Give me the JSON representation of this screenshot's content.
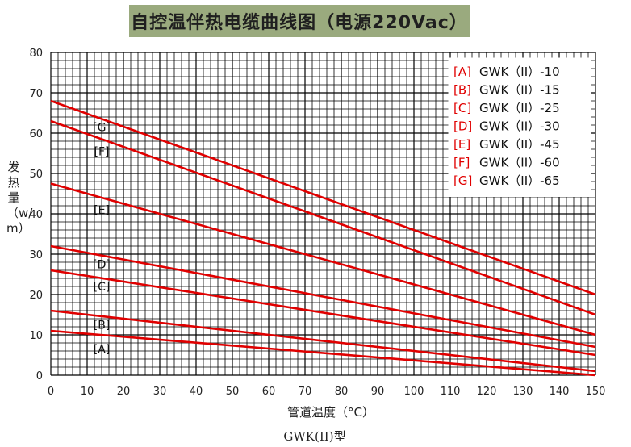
{
  "title": "自控温伴热电缆曲线图（电源220Vac）",
  "ylabel": "发热量（w/m）",
  "xlabel": "管道温度（°C）",
  "caption": "GWK(II)型",
  "colors": {
    "series": "#e00000",
    "grid": "#000000",
    "legend_letter": "#e00000",
    "title_bg": "#9aaa7e"
  },
  "chart_data": {
    "type": "line",
    "title": "自控温伴热电缆曲线图（电源220Vac）",
    "xlabel": "管道温度（°C）",
    "ylabel": "发热量（w/m）",
    "xlim": [
      0,
      150
    ],
    "ylim": [
      0,
      80
    ],
    "x_ticks": [
      0,
      10,
      20,
      30,
      40,
      50,
      60,
      70,
      80,
      90,
      100,
      110,
      120,
      130,
      140,
      150
    ],
    "y_ticks": [
      0,
      10,
      20,
      30,
      40,
      50,
      60,
      70,
      80
    ],
    "grid": true,
    "legend_position": "top-right",
    "series": [
      {
        "letter": "[A]",
        "name": "GWK（II）-10",
        "x": [
          0,
          150
        ],
        "y": [
          11,
          0
        ]
      },
      {
        "letter": "[B]",
        "name": "GWK（II）-15",
        "x": [
          0,
          150
        ],
        "y": [
          16,
          1
        ]
      },
      {
        "letter": "[C]",
        "name": "GWK（II）-25",
        "x": [
          0,
          150
        ],
        "y": [
          26,
          5
        ]
      },
      {
        "letter": "[D]",
        "name": "GWK（II）-30",
        "x": [
          0,
          150
        ],
        "y": [
          32,
          7
        ]
      },
      {
        "letter": "[E]",
        "name": "GWK（II）-45",
        "x": [
          0,
          150
        ],
        "y": [
          47.5,
          10
        ]
      },
      {
        "letter": "[F]",
        "name": "GWK（II）-60",
        "x": [
          0,
          150
        ],
        "y": [
          63,
          15
        ]
      },
      {
        "letter": "[G]",
        "name": "GWK（II）-65",
        "x": [
          0,
          150
        ],
        "y": [
          68,
          20
        ]
      }
    ],
    "annotations": [
      {
        "text": "[G]",
        "x": 14,
        "y": 61.5
      },
      {
        "text": "[F]",
        "x": 14,
        "y": 55.5
      },
      {
        "text": "[E]",
        "x": 14,
        "y": 41
      },
      {
        "text": "[D]",
        "x": 14,
        "y": 27.5
      },
      {
        "text": "[C]",
        "x": 14,
        "y": 22
      },
      {
        "text": "[B]",
        "x": 14,
        "y": 12.5
      },
      {
        "text": "[A]",
        "x": 14,
        "y": 6.5
      }
    ]
  }
}
